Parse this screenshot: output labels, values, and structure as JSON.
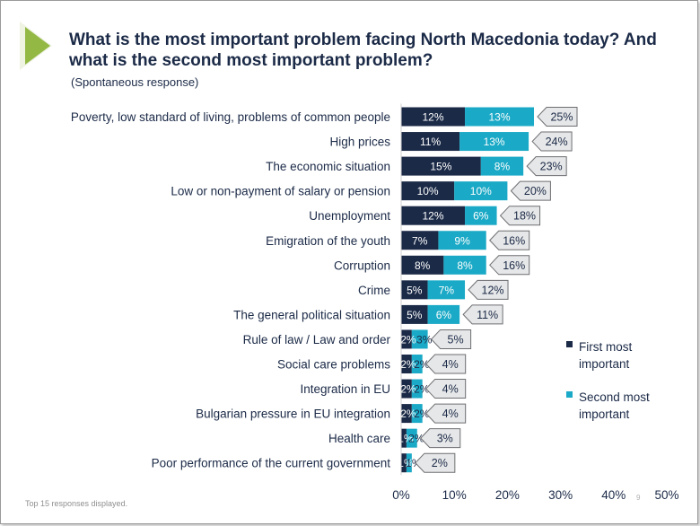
{
  "header": {
    "title": "What is the most important problem facing North Macedonia today? And what is the second most important problem?",
    "subtitle": "(Spontaneous response)"
  },
  "footer": {
    "note": "Top 15 responses displayed.",
    "page_number": "9"
  },
  "colors": {
    "accent": "#93b843",
    "first": "#1b2a47",
    "second": "#1aa9c6",
    "callout_fill": "#e6e7e8",
    "callout_stroke": "#6d6e71"
  },
  "chart_data": {
    "type": "bar",
    "orientation": "horizontal",
    "stacked": true,
    "categories": [
      "Poverty, low standard of living, problems of common people",
      "High prices",
      "The economic situation",
      "Low or non-payment of salary or pension",
      "Unemployment",
      "Emigration of the youth",
      "Corruption",
      "Crime",
      "The general political situation",
      "Rule of law / Law and order",
      "Social care problems",
      "Integration in EU",
      "Bulgarian pressure in EU integration",
      "Health care",
      "Poor performance of the current government"
    ],
    "series": [
      {
        "name": "First most important",
        "values": [
          12,
          11,
          15,
          10,
          12,
          7,
          8,
          5,
          5,
          2,
          2,
          2,
          2,
          1,
          1
        ]
      },
      {
        "name": "Second most important",
        "values": [
          13,
          13,
          8,
          10,
          6,
          9,
          8,
          7,
          6,
          3,
          2,
          2,
          2,
          2,
          1
        ]
      }
    ],
    "totals": [
      25,
      24,
      23,
      20,
      18,
      16,
      16,
      12,
      11,
      5,
      4,
      4,
      4,
      3,
      2
    ],
    "value_suffix": "%",
    "xlim": [
      0,
      50
    ],
    "x_ticks": [
      "0%",
      "10%",
      "20%",
      "30%",
      "40%",
      "50%"
    ],
    "grid": false,
    "legend_position": "right"
  }
}
